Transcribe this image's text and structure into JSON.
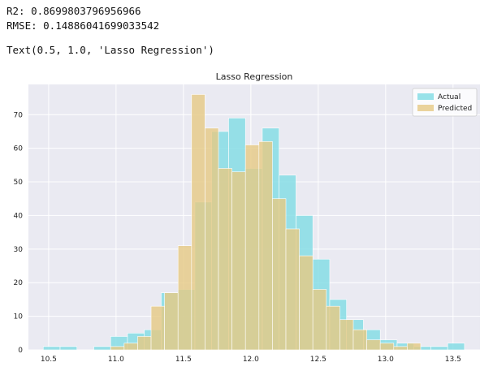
{
  "output": {
    "r2_line": "R2: 0.8699803796956966",
    "rmse_line": "RMSE: 0.14886041699033542",
    "text_repr": "Text(0.5, 1.0, 'Lasso Regression')"
  },
  "chart_data": {
    "type": "bar",
    "title": "Lasso Regression",
    "xlabel": "",
    "ylabel": "",
    "xlim": [
      10.35,
      13.7
    ],
    "ylim": [
      0,
      79
    ],
    "xticks": [
      10.5,
      11.0,
      11.5,
      12.0,
      12.5,
      13.0,
      13.5
    ],
    "xtick_labels": [
      "10.5",
      "11.0",
      "11.5",
      "12.0",
      "12.5",
      "13.0",
      "13.5"
    ],
    "yticks": [
      0,
      10,
      20,
      30,
      40,
      50,
      60,
      70
    ],
    "grid": true,
    "legend": "top-right",
    "series": [
      {
        "name": "Actual",
        "color": "#7fdce4",
        "bin_edges": [
          10.46,
          10.585,
          10.71,
          10.835,
          10.96,
          11.085,
          11.21,
          11.335,
          11.46,
          11.585,
          11.71,
          11.835,
          11.96,
          12.085,
          12.21,
          12.335,
          12.46,
          12.585,
          12.71,
          12.835,
          12.96,
          13.085,
          13.21,
          13.335,
          13.46,
          13.585
        ],
        "counts": [
          1,
          1,
          0,
          1,
          4,
          5,
          6,
          17,
          18,
          44,
          65,
          69,
          54,
          66,
          52,
          40,
          27,
          15,
          9,
          6,
          3,
          2,
          1,
          1,
          2
        ]
      },
      {
        "name": "Predicted",
        "color": "#e6c983",
        "bin_edges": [
          10.96,
          11.06,
          11.16,
          11.26,
          11.36,
          11.46,
          11.56,
          11.66,
          11.76,
          11.86,
          11.96,
          12.06,
          12.16,
          12.26,
          12.36,
          12.46,
          12.56,
          12.66,
          12.76,
          12.86,
          12.96,
          13.06,
          13.16,
          13.26
        ],
        "counts": [
          1,
          2,
          4,
          13,
          17,
          31,
          76,
          66,
          54,
          53,
          61,
          62,
          45,
          36,
          28,
          18,
          13,
          9,
          6,
          3,
          2,
          1,
          2
        ]
      }
    ]
  }
}
